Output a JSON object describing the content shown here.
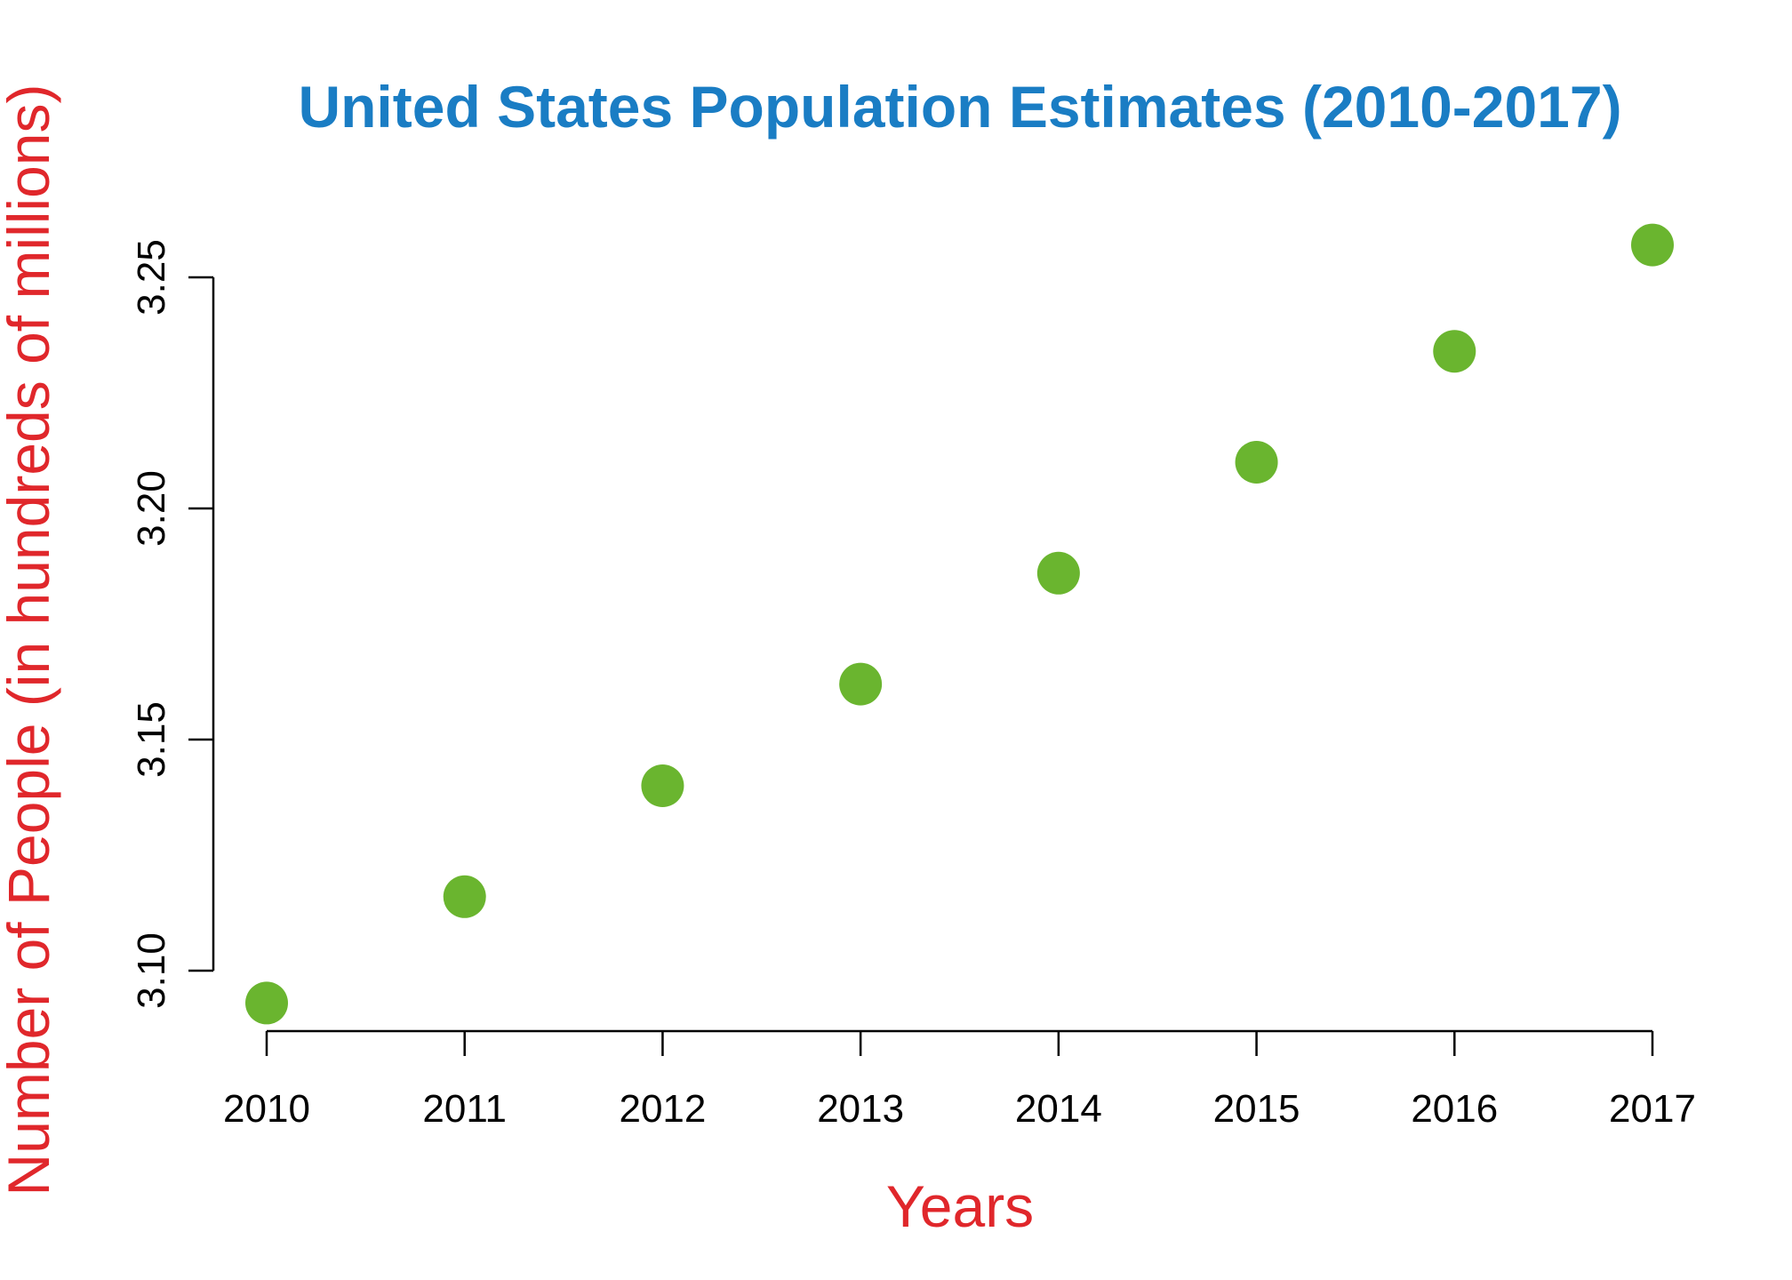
{
  "chart_data": {
    "type": "scatter",
    "title": "United States Population Estimates (2010-2017)",
    "xlabel": "Years",
    "ylabel": "Number of People (in hundreds of millions)",
    "x": [
      2010,
      2011,
      2012,
      2013,
      2014,
      2015,
      2016,
      2017
    ],
    "y": [
      3.093,
      3.116,
      3.14,
      3.162,
      3.186,
      3.21,
      3.234,
      3.257
    ],
    "x_ticks": [
      "2010",
      "2011",
      "2012",
      "2013",
      "2014",
      "2015",
      "2016",
      "2017"
    ],
    "y_ticks": [
      "3.10",
      "3.15",
      "3.20",
      "3.25"
    ],
    "xlim": [
      2010,
      2017
    ],
    "ylim": [
      3.1,
      3.25
    ],
    "grid": false,
    "legend": "none",
    "colors": {
      "title": "#1a7dc4",
      "axis_labels": "#e0272b",
      "points": "#6ab52f"
    }
  }
}
